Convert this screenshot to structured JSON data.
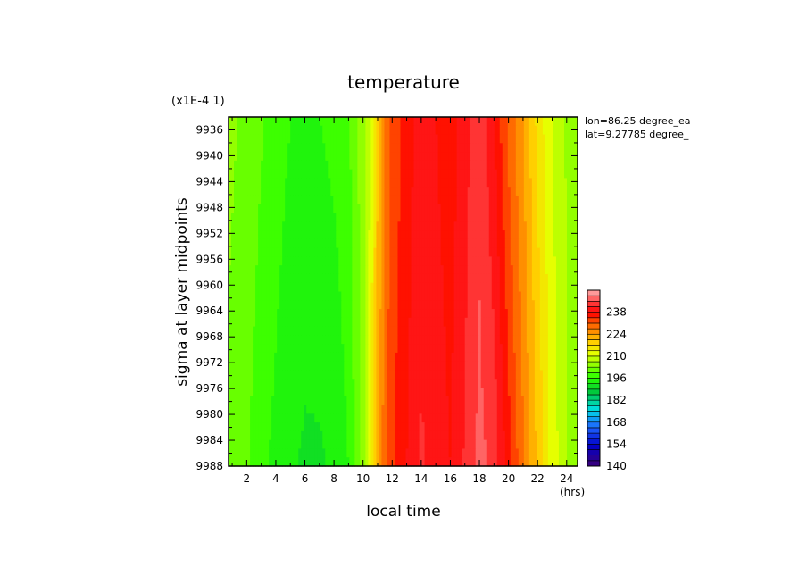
{
  "chart_data": {
    "type": "heatmap",
    "title": "temperature",
    "y_scale_note": "(x1E-4 1)",
    "xlabel": "local time",
    "x_unit": "(hrs)",
    "ylabel": "sigma at layer midpoints",
    "xlim": [
      0.75,
      24.75
    ],
    "ylim": [
      9988,
      9934
    ],
    "x_ticks": [
      2,
      4,
      6,
      8,
      10,
      12,
      14,
      16,
      18,
      20,
      22,
      24
    ],
    "y_ticks": [
      9936,
      9940,
      9944,
      9948,
      9952,
      9956,
      9960,
      9964,
      9968,
      9972,
      9976,
      9980,
      9984,
      9988
    ],
    "annotations": [
      "lon=86.25 degree_ea",
      "lat=9.27785 degree_"
    ],
    "colorbar": {
      "min": 140,
      "max": 252,
      "step": 3.5,
      "tick_labels": [
        140,
        154,
        168,
        182,
        196,
        210,
        224,
        238
      ]
    },
    "temperature_profile": {
      "x": [
        0.75,
        2,
        3,
        4,
        5,
        6,
        7,
        8,
        9,
        10,
        10.5,
        11,
        11.5,
        12,
        13,
        14,
        15,
        16,
        17,
        18,
        19,
        20,
        21,
        22,
        23,
        24,
        24.75
      ],
      "top": [
        204,
        202,
        200,
        198,
        196,
        195,
        196,
        197,
        199,
        205,
        210,
        220,
        228,
        232,
        236,
        240,
        238,
        236,
        240,
        244,
        238,
        230,
        224,
        216,
        210,
        206,
        204
      ],
      "bottom": [
        202,
        200,
        197,
        195,
        193,
        192,
        192,
        193,
        196,
        205,
        212,
        222,
        230,
        234,
        238,
        242,
        240,
        238,
        242,
        246,
        244,
        236,
        228,
        220,
        212,
        207,
        203
      ]
    }
  }
}
